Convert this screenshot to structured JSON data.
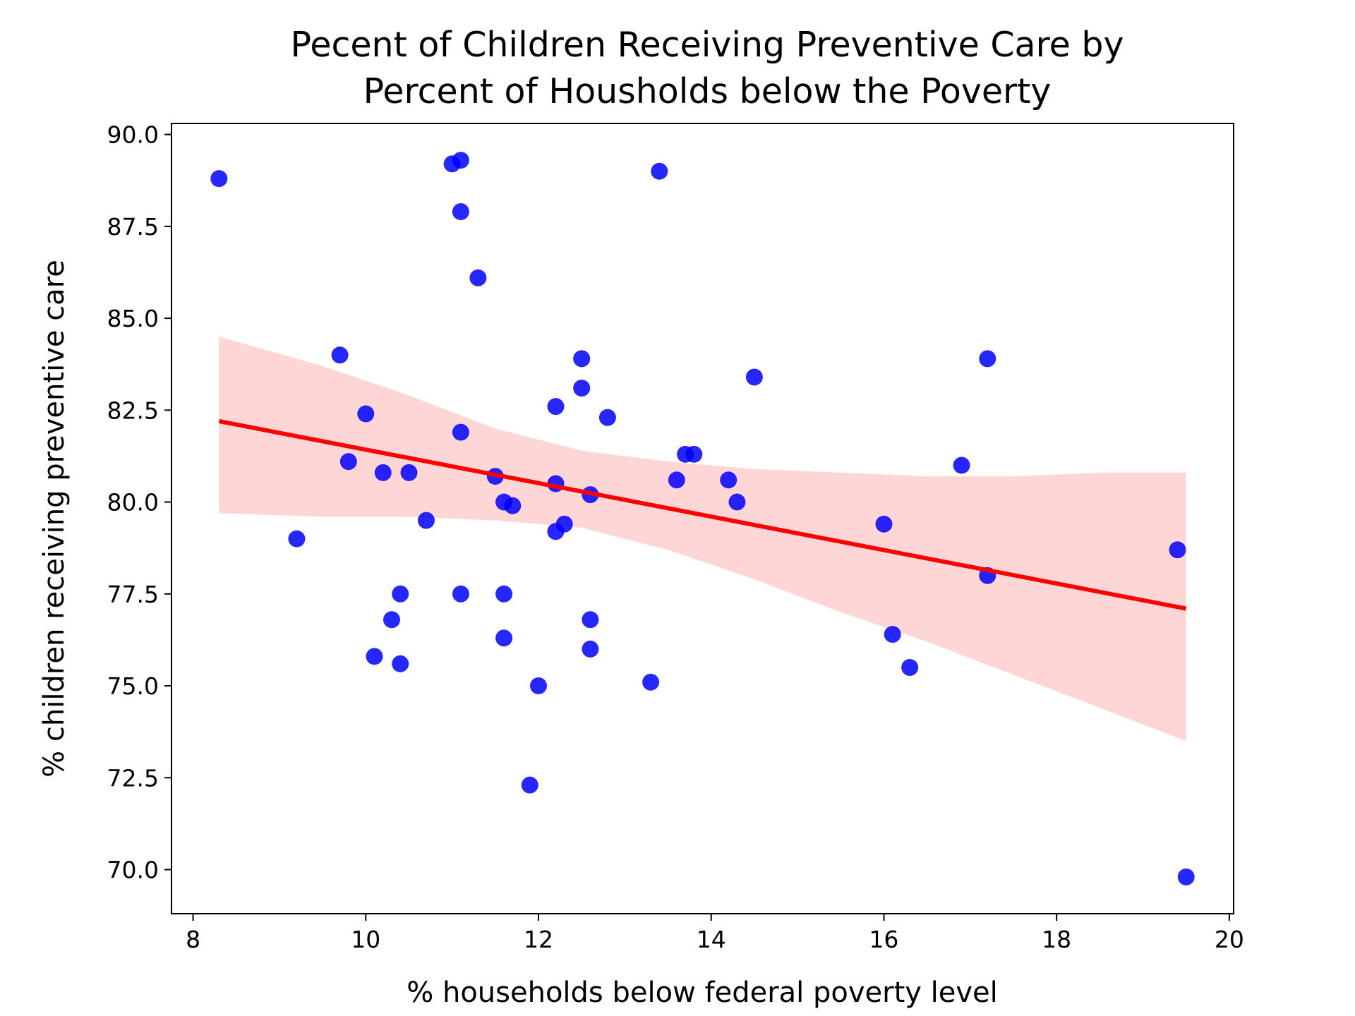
{
  "chart_data": {
    "type": "scatter",
    "title_lines": [
      "Pecent of Children Receiving Preventive Care by",
      "Percent of Housholds below the Poverty"
    ],
    "xlabel": "% households below federal poverty level",
    "ylabel": "% children receiving preventive care",
    "xlim": [
      7.75,
      20.05
    ],
    "ylim": [
      68.8,
      90.3
    ],
    "xticks": [
      8,
      10,
      12,
      14,
      16,
      18,
      20
    ],
    "xtick_labels": [
      "8",
      "10",
      "12",
      "14",
      "16",
      "18",
      "20"
    ],
    "yticks": [
      70.0,
      72.5,
      75.0,
      77.5,
      80.0,
      82.5,
      85.0,
      87.5,
      90.0
    ],
    "ytick_labels": [
      "70.0",
      "72.5",
      "75.0",
      "77.5",
      "80.0",
      "82.5",
      "85.0",
      "87.5",
      "90.0"
    ],
    "grid": false,
    "colors": {
      "points": "#0000ff",
      "line": "#ff0000",
      "band": "#ffd6d6"
    },
    "points": [
      {
        "x": 8.3,
        "y": 88.8
      },
      {
        "x": 9.2,
        "y": 79.0
      },
      {
        "x": 9.7,
        "y": 84.0
      },
      {
        "x": 9.8,
        "y": 81.1
      },
      {
        "x": 10.0,
        "y": 82.4
      },
      {
        "x": 10.1,
        "y": 75.8
      },
      {
        "x": 10.2,
        "y": 80.8
      },
      {
        "x": 10.3,
        "y": 76.8
      },
      {
        "x": 10.4,
        "y": 77.5
      },
      {
        "x": 10.4,
        "y": 75.6
      },
      {
        "x": 10.5,
        "y": 80.8
      },
      {
        "x": 10.7,
        "y": 79.5
      },
      {
        "x": 11.0,
        "y": 89.2
      },
      {
        "x": 11.1,
        "y": 89.3
      },
      {
        "x": 11.1,
        "y": 87.9
      },
      {
        "x": 11.1,
        "y": 81.9
      },
      {
        "x": 11.1,
        "y": 77.5
      },
      {
        "x": 11.3,
        "y": 86.1
      },
      {
        "x": 11.5,
        "y": 80.7
      },
      {
        "x": 11.6,
        "y": 80.0
      },
      {
        "x": 11.6,
        "y": 77.5
      },
      {
        "x": 11.6,
        "y": 76.3
      },
      {
        "x": 11.7,
        "y": 79.9
      },
      {
        "x": 11.9,
        "y": 72.3
      },
      {
        "x": 12.0,
        "y": 75.0
      },
      {
        "x": 12.2,
        "y": 82.6
      },
      {
        "x": 12.2,
        "y": 80.5
      },
      {
        "x": 12.2,
        "y": 79.2
      },
      {
        "x": 12.3,
        "y": 79.4
      },
      {
        "x": 12.5,
        "y": 83.9
      },
      {
        "x": 12.5,
        "y": 83.1
      },
      {
        "x": 12.6,
        "y": 80.2
      },
      {
        "x": 12.6,
        "y": 76.8
      },
      {
        "x": 12.6,
        "y": 76.0
      },
      {
        "x": 12.8,
        "y": 82.3
      },
      {
        "x": 13.3,
        "y": 75.1
      },
      {
        "x": 13.4,
        "y": 89.0
      },
      {
        "x": 13.6,
        "y": 80.6
      },
      {
        "x": 13.7,
        "y": 81.3
      },
      {
        "x": 13.8,
        "y": 81.3
      },
      {
        "x": 14.2,
        "y": 80.6
      },
      {
        "x": 14.3,
        "y": 80.0
      },
      {
        "x": 14.5,
        "y": 83.4
      },
      {
        "x": 16.0,
        "y": 79.4
      },
      {
        "x": 16.1,
        "y": 76.4
      },
      {
        "x": 16.3,
        "y": 75.5
      },
      {
        "x": 16.9,
        "y": 81.0
      },
      {
        "x": 17.2,
        "y": 83.9
      },
      {
        "x": 17.2,
        "y": 78.0
      },
      {
        "x": 19.4,
        "y": 78.7
      },
      {
        "x": 19.5,
        "y": 69.8
      }
    ],
    "regression_line": {
      "x": [
        8.3,
        19.5
      ],
      "y": [
        82.2,
        77.1
      ]
    },
    "confidence_band": {
      "x": [
        8.3,
        9.5,
        10.5,
        11.5,
        12.5,
        13.5,
        14.5,
        15.5,
        16.5,
        17.5,
        18.5,
        19.5
      ],
      "upper": [
        84.5,
        83.7,
        82.9,
        82.0,
        81.4,
        81.1,
        80.9,
        80.8,
        80.7,
        80.7,
        80.8,
        80.8
      ],
      "lower": [
        79.7,
        79.6,
        79.6,
        79.5,
        79.3,
        78.7,
        77.9,
        77.0,
        76.2,
        75.3,
        74.4,
        73.5
      ]
    }
  }
}
